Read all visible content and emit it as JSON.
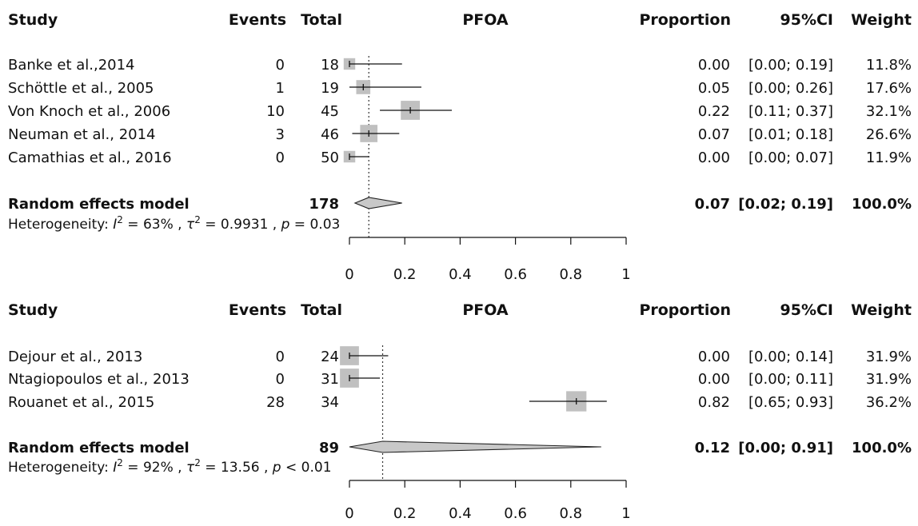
{
  "chart_data": [
    {
      "type": "forest",
      "headers": {
        "study": "Study",
        "events": "Events",
        "total": "Total",
        "title": "PFOA",
        "proportion": "Proportion",
        "ci": "95%CI",
        "weight": "Weight"
      },
      "studies": [
        {
          "name": "Banke et al.,2014",
          "events": "0",
          "total": "18",
          "proportion": 0.0,
          "ci_low": 0.0,
          "ci_high": 0.19,
          "prop_text": "0.00",
          "ci_text": "[0.00; 0.19]",
          "weight_text": "11.8%",
          "weight": 11.8
        },
        {
          "name": "Schöttle et al., 2005",
          "events": "1",
          "total": "19",
          "proportion": 0.05,
          "ci_low": 0.0,
          "ci_high": 0.26,
          "prop_text": "0.05",
          "ci_text": "[0.00; 0.26]",
          "weight_text": "17.6%",
          "weight": 17.6
        },
        {
          "name": "Von Knoch et al., 2006",
          "events": "10",
          "total": "45",
          "proportion": 0.22,
          "ci_low": 0.11,
          "ci_high": 0.37,
          "prop_text": "0.22",
          "ci_text": "[0.11; 0.37]",
          "weight_text": "32.1%",
          "weight": 32.1
        },
        {
          "name": "Neuman et al., 2014",
          "events": "3",
          "total": "46",
          "proportion": 0.07,
          "ci_low": 0.01,
          "ci_high": 0.18,
          "prop_text": "0.07",
          "ci_text": "[0.01; 0.18]",
          "weight_text": "26.6%",
          "weight": 26.6
        },
        {
          "name": "Camathias et al., 2016",
          "events": "0",
          "total": "50",
          "proportion": 0.0,
          "ci_low": 0.0,
          "ci_high": 0.07,
          "prop_text": "0.00",
          "ci_text": "[0.00; 0.07]",
          "weight_text": "11.9%",
          "weight": 11.9
        }
      ],
      "summary": {
        "name": "Random effects model",
        "total": "178",
        "estimate": 0.07,
        "ci_low": 0.02,
        "ci_high": 0.19,
        "prop_text": "0.07",
        "ci_text": "[0.02; 0.19]",
        "weight_text": "100.0%"
      },
      "heterogeneity": {
        "prefix": "Heterogeneity:",
        "i2": "63%",
        "tau2": "0.9931",
        "p_op": "=",
        "p": "0.03"
      },
      "xlim": [
        0,
        1
      ],
      "ticks": [
        "0",
        "0.2",
        "0.4",
        "0.6",
        "0.8",
        "1"
      ],
      "tick_values": [
        0,
        0.2,
        0.4,
        0.6,
        0.8,
        1
      ]
    },
    {
      "type": "forest",
      "headers": {
        "study": "Study",
        "events": "Events",
        "total": "Total",
        "title": "PFOA",
        "proportion": "Proportion",
        "ci": "95%CI",
        "weight": "Weight"
      },
      "studies": [
        {
          "name": "Dejour et al., 2013",
          "events": "0",
          "total": "24",
          "proportion": 0.0,
          "ci_low": 0.0,
          "ci_high": 0.14,
          "prop_text": "0.00",
          "ci_text": "[0.00; 0.14]",
          "weight_text": "31.9%",
          "weight": 31.9
        },
        {
          "name": "Ntagiopoulos et al., 2013",
          "events": "0",
          "total": "31",
          "proportion": 0.0,
          "ci_low": 0.0,
          "ci_high": 0.11,
          "prop_text": "0.00",
          "ci_text": "[0.00; 0.11]",
          "weight_text": "31.9%",
          "weight": 31.9
        },
        {
          "name": "Rouanet et al., 2015",
          "events": "28",
          "total": "34",
          "proportion": 0.82,
          "ci_low": 0.65,
          "ci_high": 0.93,
          "prop_text": "0.82",
          "ci_text": "[0.65; 0.93]",
          "weight_text": "36.2%",
          "weight": 36.2
        }
      ],
      "summary": {
        "name": "Random effects model",
        "total": "89",
        "estimate": 0.12,
        "ci_low": 0.0,
        "ci_high": 0.91,
        "prop_text": "0.12",
        "ci_text": "[0.00; 0.91]",
        "weight_text": "100.0%"
      },
      "heterogeneity": {
        "prefix": "Heterogeneity:",
        "i2": "92%",
        "tau2": "13.56",
        "p_op": "<",
        "p": "0.01"
      },
      "xlim": [
        0,
        1
      ],
      "ticks": [
        "0",
        "0.2",
        "0.4",
        "0.6",
        "0.8",
        "1"
      ],
      "tick_values": [
        0,
        0.2,
        0.4,
        0.6,
        0.8,
        1
      ]
    }
  ],
  "colors": {
    "box": "#c0c0c0",
    "diamond": "#c8c8c8",
    "line": "#111111"
  }
}
